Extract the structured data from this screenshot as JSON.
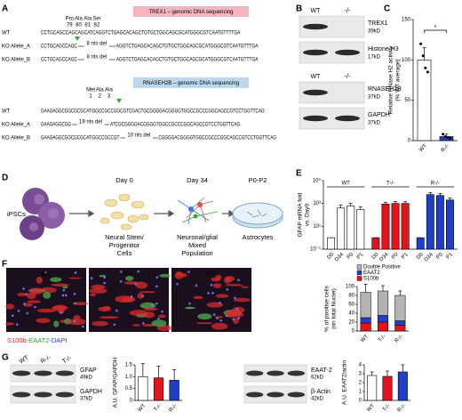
{
  "panel_a": {
    "label": "A",
    "blocks": [
      {
        "title": "TREX1 – genomic DNA sequencing",
        "color": "#f4b6bc",
        "codons": [
          {
            "aa": "Pro",
            "pos": 79
          },
          {
            "aa": "Ala",
            "pos": 80
          },
          {
            "aa": "Ala",
            "pos": 81
          },
          {
            "aa": "Ser",
            "pos": 82
          }
        ],
        "rows": [
          {
            "label": "WT",
            "segments": [
              {
                "text": "CCTGCAGCCAGCAGCATCAGGTCTGAGCACAGCTGTGCTGGCAGCGCATGGGCGTCAATGTTTTGA"
              }
            ]
          },
          {
            "label": "KO Allele_A",
            "segments": [
              {
                "text": "CCTGCAGCCAGC"
              },
              {
                "deletion": "8 nts del"
              },
              {
                "text": "AGGTCTGAGCACAGCTGTGCTGGCAGCGCATGGGCGTCAATGTT"
              },
              {
                "text": "TGA",
                "color": "#e3141b"
              }
            ]
          },
          {
            "label": "KO Allele_B",
            "segments": [
              {
                "text": "CCTGCAGCCAGC"
              },
              {
                "deletion": "8 nts del"
              },
              {
                "text": "AGGTCTGAGCACAGCTGTGCTGGCAGCGCATGGGCGTCAATGTT"
              },
              {
                "text": "TGA",
                "color": "#e3141b"
              }
            ]
          }
        ]
      },
      {
        "title": "RNASEH2B – genomic DNA sequencing",
        "color": "#bcd7ee",
        "codons": [
          {
            "aa": "Met",
            "pos": 1,
            "color": "#3a8fd0"
          },
          {
            "aa": "Ala",
            "pos": 2
          },
          {
            "aa": "Ala",
            "pos": 3
          }
        ],
        "rows": [
          {
            "label": "WT",
            "segments": [
              {
                "text": "GAAGAGGCGGCGCGC"
              },
              {
                "text": "ATG",
                "color": "#3a8fd0"
              },
              {
                "text": "GCCGCCGGCGTCGACTGCGGGGACGGGGTGGCCGCCCGGCAGCCGTCCTGGTTCAG"
              }
            ]
          },
          {
            "label": "KO Allele_A",
            "segments": [
              {
                "text": "GAAGAGGCGG"
              },
              {
                "deletion": "19 nts del"
              },
              {
                "text": "ATCGCGGGGACGGGGTGGCCGCCCGGCAGCCGTCCTGGTTCAG"
              }
            ]
          },
          {
            "label": "KO Allele_B",
            "segments": [
              {
                "text": "GAAGAGGCGGCGCGC"
              },
              {
                "text": "ATG",
                "color": "#3a8fd0"
              },
              {
                "text": "GCCGCCGT"
              },
              {
                "deletion": "10 nts del"
              },
              {
                "text": "CGGGGACGGGGTGGCCGCCCGGCAGCCGTCCTGGTTCAG"
              }
            ]
          }
        ]
      }
    ]
  },
  "panel_b": {
    "label": "B",
    "groups": [
      {
        "lanes": [
          "WT",
          "-/-"
        ],
        "blots": [
          {
            "name": "TREX1",
            "size": "39kD"
          },
          {
            "name": "Histone H3",
            "size": "17kD"
          }
        ]
      },
      {
        "lanes": [
          "WT",
          "-/-"
        ],
        "blots": [
          {
            "name": "RNASEH2B",
            "size": "37kD"
          },
          {
            "name": "GAPDH",
            "size": "37kD"
          }
        ]
      }
    ]
  },
  "panel_c": {
    "label": "C",
    "type": "bar",
    "ylabel": [
      "Relative RNase H2 activity",
      "(% WT average)"
    ],
    "categories": [
      "WT",
      "R-/-"
    ],
    "values": [
      100,
      5
    ],
    "errors": [
      15,
      3
    ],
    "colors": [
      "#ffffff",
      "#1f3fc9"
    ],
    "points": [
      [
        120,
        105,
        90,
        85
      ],
      [
        8,
        5,
        4,
        3
      ]
    ],
    "ylim": [
      0,
      150
    ],
    "yticks": [
      0,
      50,
      100,
      150
    ],
    "significance": "*"
  },
  "panel_d": {
    "label": "D",
    "start": "iPSCs",
    "steps": [
      {
        "time": "Day 0",
        "caption": [
          "Neural Stem/",
          "Progenitor",
          "Cells"
        ]
      },
      {
        "time": "Day 34",
        "caption": [
          "Neuronal/glial",
          "Mixed",
          "Population"
        ]
      },
      {
        "time": "P0-P2",
        "caption": [
          "Astrocytes"
        ]
      }
    ]
  },
  "panel_e": {
    "label": "E",
    "type": "grouped_bar",
    "log": true,
    "ylabel": [
      "GFAP mRNA fold",
      "vs. Day0"
    ],
    "groups": [
      {
        "name": "WT",
        "color": "#ffffff",
        "categories": [
          "D0",
          "D34",
          "P0",
          "P1"
        ],
        "values": [
          1,
          400,
          600,
          300
        ],
        "errors": [
          0,
          300,
          400,
          200
        ]
      },
      {
        "name": "T-/-",
        "color": "#e3141b",
        "categories": [
          "D0",
          "D34",
          "P0",
          "P1"
        ],
        "values": [
          1,
          900,
          1000,
          1000
        ],
        "errors": [
          0,
          400,
          500,
          400
        ]
      },
      {
        "name": "R-/-",
        "color": "#1f3fc9",
        "categories": [
          "D0",
          "D34",
          "P0",
          "P1"
        ],
        "values": [
          1,
          6000,
          5000,
          2000
        ],
        "errors": [
          0,
          3000,
          2500,
          1000
        ]
      }
    ],
    "ylim": [
      0.1,
      100000
    ],
    "yticks": [
      {
        "value": 0.1,
        "label": "10⁻¹"
      },
      {
        "value": 10,
        "label": "10¹"
      },
      {
        "value": 1000,
        "label": "10³"
      },
      {
        "value": 100000,
        "label": "10⁵"
      }
    ]
  },
  "panel_f": {
    "label": "F",
    "images": [
      "WT",
      "T-/-",
      "R-/-"
    ],
    "caption": [
      {
        "text": "S100b",
        "color": "#d8262a"
      },
      {
        "text": "-EAAT2",
        "color": "#2f9e3a"
      },
      {
        "text": "-DAPI",
        "color": "#2a3bc4"
      }
    ],
    "chart": {
      "type": "stacked_bar",
      "ylabel": [
        "% of positive cells",
        "(on total Nuclei)"
      ],
      "categories": [
        "WT",
        "T-/-",
        "R-/-"
      ],
      "series": [
        {
          "name": "Double Positive",
          "color": "#b3b3b3",
          "values": [
            57,
            55,
            57
          ],
          "errors": [
            18,
            12,
            10
          ]
        },
        {
          "name": "EAAT2",
          "color": "#1f3fc9",
          "values": [
            12,
            15,
            10
          ]
        },
        {
          "name": "S100b",
          "color": "#e3141b",
          "values": [
            18,
            20,
            13
          ]
        }
      ],
      "ylim": [
        0,
        100
      ],
      "yticks": [
        0,
        20,
        40,
        60,
        80,
        100
      ]
    }
  },
  "panel_g": {
    "label": "G",
    "blots": [
      {
        "lanes": [
          "WT",
          "R-/-",
          "T-/-"
        ],
        "rows": [
          {
            "name": "GFAP",
            "size": "49kD"
          },
          {
            "name": "GAPDH",
            "size": "37kD"
          }
        ]
      },
      {
        "rows": [
          {
            "name": "EAAT-2",
            "size": "62kD"
          },
          {
            "name": "β-Actin",
            "size": "42kD"
          }
        ]
      }
    ],
    "charts": [
      {
        "type": "bar",
        "ylabel": [
          "A.U. GFAP/GAPDH"
        ],
        "categories": [
          "WT",
          "T-/-",
          "R-/-"
        ],
        "values": [
          1.0,
          0.95,
          0.85
        ],
        "errors": [
          0.55,
          0.5,
          0.45
        ],
        "colors": [
          "#ffffff",
          "#e3141b",
          "#1f3fc9"
        ],
        "ylim": [
          0,
          1.5
        ],
        "yticks": [
          0,
          0.5,
          {
            "value": 1,
            "label": "1.0"
          },
          1.5
        ]
      },
      {
        "type": "bar",
        "ylabel": [
          "A.U. EAAT2/actin"
        ],
        "categories": [
          "WT",
          "T-/-",
          "R-/-"
        ],
        "values": [
          2.8,
          2.7,
          3.2
        ],
        "errors": [
          0.4,
          0.6,
          0.8
        ],
        "colors": [
          "#ffffff",
          "#e3141b",
          "#1f3fc9"
        ],
        "ylim": [
          0,
          4
        ],
        "yticks": [
          0,
          1,
          2,
          3,
          4
        ]
      }
    ]
  }
}
